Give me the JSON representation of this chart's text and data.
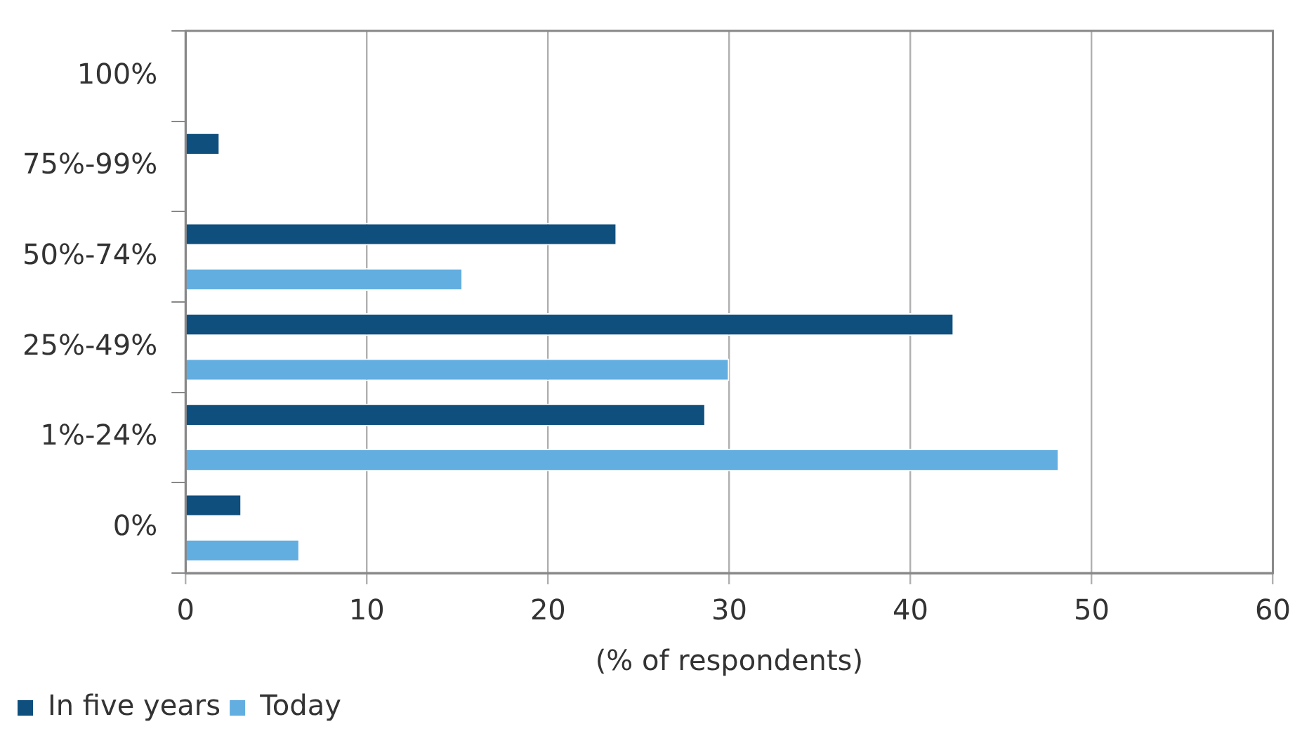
{
  "chart_data": {
    "type": "bar",
    "orientation": "horizontal",
    "xlabel": "(% of respondents)",
    "categories": [
      "100%",
      "75%-99%",
      "50%-74%",
      "25%-49%",
      "1%-24%",
      "0%"
    ],
    "series": [
      {
        "name": "In five years",
        "color": "#0e4f7e",
        "values": [
          0,
          1.9,
          23.8,
          42.4,
          28.7,
          3.1
        ]
      },
      {
        "name": "Today",
        "color": "#62aee0",
        "values": [
          0,
          0,
          15.3,
          30.0,
          48.2,
          6.3
        ]
      }
    ],
    "xlim": [
      0,
      60
    ],
    "xticks": [
      0,
      10,
      20,
      30,
      40,
      50,
      60
    ],
    "grid": "x",
    "legend": "bottom left"
  }
}
